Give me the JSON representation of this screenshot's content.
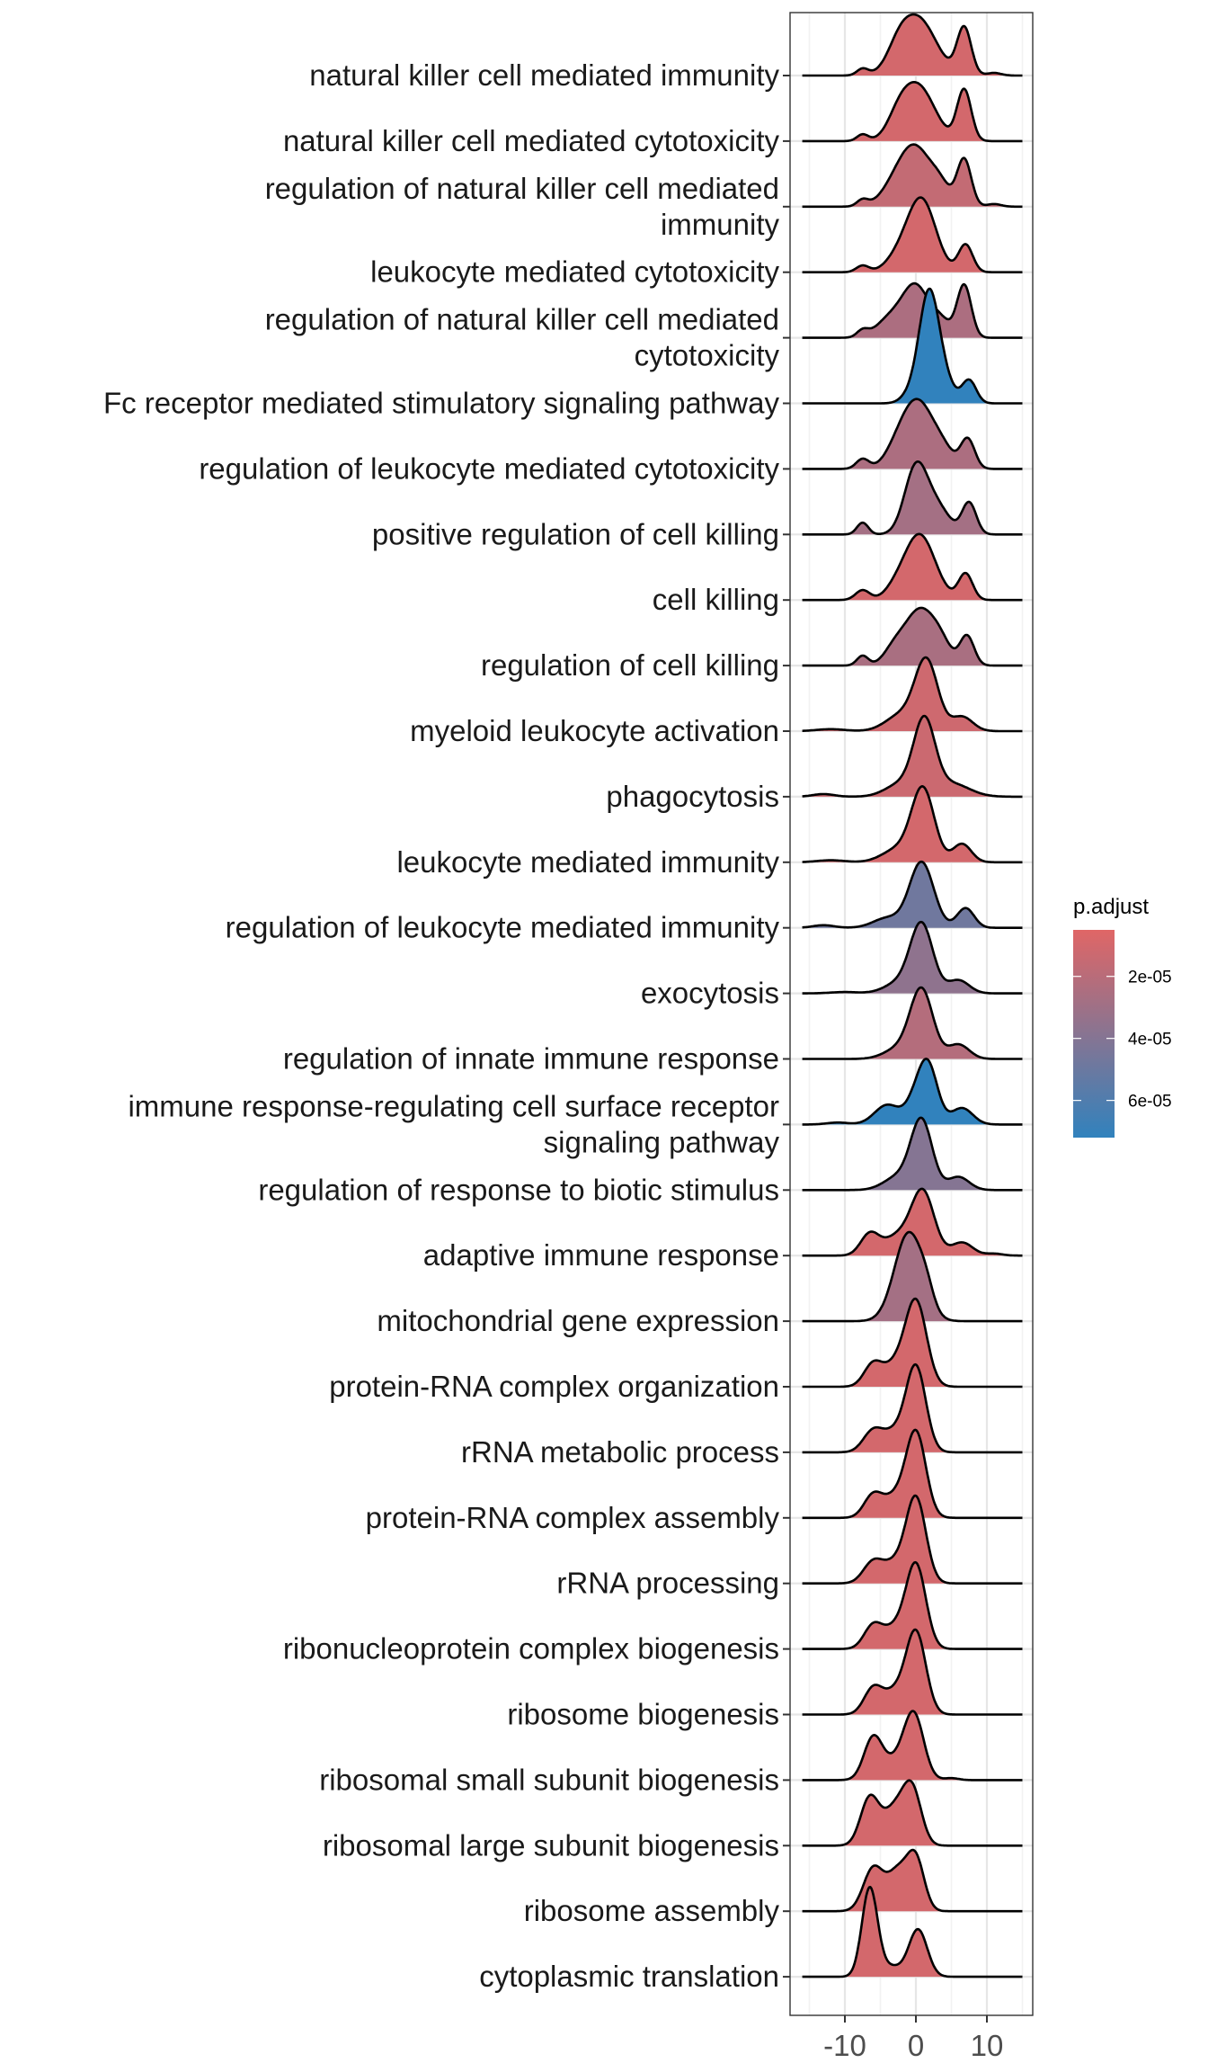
{
  "chart_data": {
    "type": "ridgeline",
    "title": "",
    "xlabel": "",
    "ylabel": "",
    "xlim": [
      -17,
      17
    ],
    "x_ticks": [
      -10,
      0,
      10
    ],
    "x_tick_labels": [
      "-10",
      "0",
      "10"
    ],
    "x_minor_gridlines": [
      -15,
      -5,
      5,
      15
    ],
    "grid": true,
    "density_range": [
      -16,
      15
    ],
    "height_unit": "row spacing",
    "legend": {
      "title": "p.adjust",
      "position": "right",
      "type": "colorbar",
      "range": [
        5e-06,
        7.2e-05
      ],
      "ticks": [
        2e-05,
        4e-05,
        6e-05
      ],
      "tick_labels": [
        "2e-05",
        "4e-05",
        "6e-05"
      ],
      "low_color": "#E06666",
      "high_color": "#3182BD"
    },
    "series": [
      {
        "name": "natural killer cell mediated immunity",
        "p_adjust": 1e-05,
        "components": [
          [
            -7.5,
            0.8,
            0.1
          ],
          [
            0.2,
            2.6,
            0.88
          ],
          [
            -2.5,
            1.5,
            0.2
          ],
          [
            6.8,
            1.0,
            0.72
          ],
          [
            11,
            1.0,
            0.04
          ]
        ]
      },
      {
        "name": "natural killer cell mediated cytotoxicity",
        "p_adjust": 1e-05,
        "components": [
          [
            -7.5,
            0.8,
            0.1
          ],
          [
            0.2,
            2.4,
            0.85
          ],
          [
            -2.5,
            1.5,
            0.2
          ],
          [
            6.8,
            1.0,
            0.78
          ]
        ]
      },
      {
        "name": "regulation of natural killer cell mediated\nimmunity",
        "p_adjust": 1.6e-05,
        "components": [
          [
            -7.5,
            0.8,
            0.1
          ],
          [
            0.0,
            2.2,
            0.85
          ],
          [
            -3,
            2.0,
            0.25
          ],
          [
            3.5,
            1.4,
            0.25
          ],
          [
            6.8,
            1.0,
            0.72
          ],
          [
            11,
            1.0,
            0.04
          ]
        ]
      },
      {
        "name": "leukocyte mediated cytotoxicity",
        "p_adjust": 1e-05,
        "components": [
          [
            -7.5,
            0.9,
            0.1
          ],
          [
            0.8,
            2.0,
            1.1
          ],
          [
            -2.5,
            1.8,
            0.2
          ],
          [
            7.0,
            1.0,
            0.42
          ]
        ]
      },
      {
        "name": "regulation of natural killer cell mediated\ncytotoxicity",
        "p_adjust": 2.5e-05,
        "components": [
          [
            -7.5,
            0.8,
            0.1
          ],
          [
            0.0,
            1.8,
            0.75
          ],
          [
            -3.5,
            2.0,
            0.3
          ],
          [
            3.5,
            1.4,
            0.25
          ],
          [
            6.8,
            1.0,
            0.8
          ]
        ]
      },
      {
        "name": "Fc receptor mediated stimulatory signaling pathway",
        "p_adjust": 7.2e-05,
        "components": [
          [
            1.8,
            1.4,
            1.65
          ],
          [
            4.0,
            1.4,
            0.3
          ],
          [
            7.5,
            1.0,
            0.35
          ],
          [
            -1,
            1.2,
            0.1
          ]
        ]
      },
      {
        "name": "regulation of leukocyte mediated cytotoxicity",
        "p_adjust": 2.5e-05,
        "components": [
          [
            -7.5,
            0.9,
            0.15
          ],
          [
            0.4,
            2.2,
            0.98
          ],
          [
            -2.5,
            1.8,
            0.25
          ],
          [
            4,
            1.5,
            0.2
          ],
          [
            7.3,
            1.0,
            0.45
          ]
        ]
      },
      {
        "name": "positive regulation of cell killing",
        "p_adjust": 2.8e-05,
        "components": [
          [
            -7.5,
            0.8,
            0.18
          ],
          [
            0.0,
            1.6,
            1.0
          ],
          [
            3.0,
            1.8,
            0.4
          ],
          [
            7.5,
            1.0,
            0.48
          ]
        ]
      },
      {
        "name": "cell killing",
        "p_adjust": 1e-05,
        "components": [
          [
            -7.5,
            1.0,
            0.15
          ],
          [
            0.5,
            2.2,
            1.0
          ],
          [
            -3,
            1.5,
            0.1
          ],
          [
            7.0,
            1.0,
            0.4
          ]
        ]
      },
      {
        "name": "regulation of cell killing",
        "p_adjust": 2.6e-05,
        "components": [
          [
            -7.5,
            0.8,
            0.15
          ],
          [
            0.5,
            2.0,
            0.82
          ],
          [
            -3,
            1.5,
            0.25
          ],
          [
            3.5,
            1.5,
            0.3
          ],
          [
            7.2,
            1.0,
            0.45
          ]
        ]
      },
      {
        "name": "myeloid leukocyte activation",
        "p_adjust": 1.2e-05,
        "components": [
          [
            -12,
            2,
            0.03
          ],
          [
            1.5,
            1.6,
            1.05
          ],
          [
            -2,
            2.2,
            0.25
          ],
          [
            6.5,
            1.5,
            0.22
          ]
        ]
      },
      {
        "name": "phagocytosis",
        "p_adjust": 1.3e-05,
        "components": [
          [
            -13,
            1.5,
            0.04
          ],
          [
            1.2,
            1.5,
            1.1
          ],
          [
            -2,
            2.2,
            0.2
          ],
          [
            5,
            2.5,
            0.2
          ]
        ]
      },
      {
        "name": "leukocyte mediated immunity",
        "p_adjust": 1e-05,
        "components": [
          [
            -12,
            2,
            0.03
          ],
          [
            1.0,
            1.6,
            1.1
          ],
          [
            -2.5,
            2.2,
            0.2
          ],
          [
            6.5,
            1.3,
            0.28
          ]
        ]
      },
      {
        "name": "regulation of leukocyte mediated immunity",
        "p_adjust": 4.8e-05,
        "components": [
          [
            -13,
            1.5,
            0.04
          ],
          [
            0.8,
            1.7,
            1.0
          ],
          [
            -4,
            2.0,
            0.15
          ],
          [
            7.0,
            1.2,
            0.3
          ]
        ]
      },
      {
        "name": "exocytosis",
        "p_adjust": 3.6e-05,
        "components": [
          [
            -10,
            2,
            0.02
          ],
          [
            0.8,
            1.6,
            1.05
          ],
          [
            -2.5,
            2.0,
            0.15
          ],
          [
            6,
            1.5,
            0.2
          ]
        ]
      },
      {
        "name": "regulation of innate immune response",
        "p_adjust": 2.2e-05,
        "components": [
          [
            0.8,
            1.6,
            1.05
          ],
          [
            -2.5,
            2.0,
            0.15
          ],
          [
            6,
            1.5,
            0.22
          ]
        ]
      },
      {
        "name": "immune response-regulating cell surface receptor\nsignaling pathway",
        "p_adjust": 7.2e-05,
        "components": [
          [
            1.6,
            1.4,
            0.95
          ],
          [
            -4,
            1.8,
            0.3
          ],
          [
            -0.5,
            1.2,
            0.2
          ],
          [
            6.5,
            1.5,
            0.25
          ],
          [
            -11,
            1.5,
            0.03
          ]
        ]
      },
      {
        "name": "regulation of response to biotic stimulus",
        "p_adjust": 4e-05,
        "components": [
          [
            0.8,
            1.5,
            1.05
          ],
          [
            -2.5,
            2.0,
            0.2
          ],
          [
            6,
            1.5,
            0.2
          ]
        ]
      },
      {
        "name": "adaptive immune response",
        "p_adjust": 1e-05,
        "components": [
          [
            1.0,
            1.6,
            0.95
          ],
          [
            -6.5,
            1.3,
            0.32
          ],
          [
            -2.5,
            2.0,
            0.3
          ],
          [
            6.5,
            1.5,
            0.2
          ],
          [
            11,
            1.2,
            0.03
          ]
        ]
      },
      {
        "name": "mitochondrial gene expression",
        "p_adjust": 2.8e-05,
        "components": [
          [
            -1.0,
            2.0,
            1.35
          ],
          [
            1.5,
            1.0,
            0.2
          ]
        ]
      },
      {
        "name": "protein-RNA complex organization",
        "p_adjust": 1e-05,
        "components": [
          [
            0.0,
            1.5,
            1.3
          ],
          [
            -6.0,
            1.3,
            0.35
          ],
          [
            -3,
            1.5,
            0.3
          ]
        ]
      },
      {
        "name": "rRNA metabolic process",
        "p_adjust": 1e-05,
        "components": [
          [
            0.0,
            1.4,
            1.3
          ],
          [
            -6.0,
            1.4,
            0.33
          ],
          [
            -3,
            1.5,
            0.28
          ]
        ]
      },
      {
        "name": "protein-RNA complex assembly",
        "p_adjust": 1e-05,
        "components": [
          [
            0.0,
            1.4,
            1.3
          ],
          [
            -6.0,
            1.3,
            0.35
          ],
          [
            -3,
            1.5,
            0.3
          ]
        ]
      },
      {
        "name": "rRNA processing",
        "p_adjust": 1e-05,
        "components": [
          [
            0.0,
            1.4,
            1.3
          ],
          [
            -6.0,
            1.4,
            0.33
          ],
          [
            -3,
            1.5,
            0.28
          ]
        ]
      },
      {
        "name": "ribonucleoprotein complex biogenesis",
        "p_adjust": 1e-05,
        "components": [
          [
            0.0,
            1.4,
            1.28
          ],
          [
            -6.0,
            1.3,
            0.36
          ],
          [
            -3,
            1.5,
            0.3
          ]
        ]
      },
      {
        "name": "ribosome biogenesis",
        "p_adjust": 1e-05,
        "components": [
          [
            0.0,
            1.4,
            1.25
          ],
          [
            -6.0,
            1.3,
            0.4
          ],
          [
            -3,
            1.5,
            0.32
          ]
        ]
      },
      {
        "name": "ribosomal small subunit biogenesis",
        "p_adjust": 1e-05,
        "components": [
          [
            -0.3,
            1.4,
            1.0
          ],
          [
            -6.0,
            1.3,
            0.65
          ],
          [
            -3,
            1.5,
            0.25
          ],
          [
            5,
            1.0,
            0.03
          ]
        ]
      },
      {
        "name": "ribosomal large subunit biogenesis",
        "p_adjust": 1e-05,
        "components": [
          [
            -0.5,
            1.3,
            0.8
          ],
          [
            -6.5,
            1.3,
            0.72
          ],
          [
            -3.0,
            1.6,
            0.55
          ]
        ]
      },
      {
        "name": "ribosome assembly",
        "p_adjust": 1e-05,
        "components": [
          [
            0.0,
            1.2,
            0.75
          ],
          [
            -6.0,
            1.4,
            0.65
          ],
          [
            -2.5,
            1.5,
            0.6
          ]
        ]
      },
      {
        "name": "cytoplasmic translation",
        "p_adjust": 1e-05,
        "components": [
          [
            -6.5,
            1.1,
            1.35
          ],
          [
            0.3,
            1.3,
            0.72
          ],
          [
            -3.5,
            1.5,
            0.15
          ]
        ]
      }
    ]
  }
}
